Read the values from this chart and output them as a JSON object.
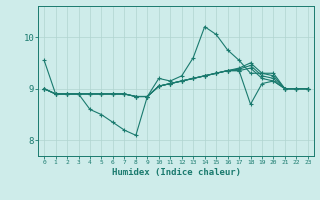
{
  "xlabel": "Humidex (Indice chaleur)",
  "ylabel": "",
  "background_color": "#ceecea",
  "grid_color": "#b0d4d0",
  "line_color": "#1a7a6e",
  "xlim": [
    -0.5,
    23.5
  ],
  "ylim": [
    7.7,
    10.6
  ],
  "yticks": [
    8,
    9,
    10
  ],
  "xticks": [
    0,
    1,
    2,
    3,
    4,
    5,
    6,
    7,
    8,
    9,
    10,
    11,
    12,
    13,
    14,
    15,
    16,
    17,
    18,
    19,
    20,
    21,
    22,
    23
  ],
  "series": [
    [
      9.55,
      8.9,
      8.9,
      8.9,
      8.6,
      8.5,
      8.35,
      8.2,
      8.1,
      8.85,
      9.2,
      9.15,
      9.25,
      9.6,
      10.2,
      10.05,
      9.75,
      9.55,
      9.3,
      9.3,
      9.3,
      9.0,
      9.0,
      9.0
    ],
    [
      9.0,
      8.9,
      8.9,
      8.9,
      8.9,
      8.9,
      8.9,
      8.9,
      8.85,
      8.85,
      9.05,
      9.1,
      9.15,
      9.2,
      9.25,
      9.3,
      9.35,
      9.4,
      9.5,
      9.3,
      9.25,
      9.0,
      9.0,
      9.0
    ],
    [
      9.0,
      8.9,
      8.9,
      8.9,
      8.9,
      8.9,
      8.9,
      8.9,
      8.85,
      8.85,
      9.05,
      9.1,
      9.15,
      9.2,
      9.25,
      9.3,
      9.35,
      9.38,
      9.45,
      9.25,
      9.2,
      9.0,
      9.0,
      9.0
    ],
    [
      9.0,
      8.9,
      8.9,
      8.9,
      8.9,
      8.9,
      8.9,
      8.9,
      8.85,
      8.85,
      9.05,
      9.1,
      9.15,
      9.2,
      9.25,
      9.3,
      9.35,
      9.35,
      9.4,
      9.2,
      9.15,
      9.0,
      9.0,
      9.0
    ],
    [
      9.0,
      8.9,
      8.9,
      8.9,
      8.9,
      8.9,
      8.9,
      8.9,
      8.85,
      8.85,
      9.05,
      9.1,
      9.15,
      9.2,
      9.25,
      9.3,
      9.35,
      9.35,
      8.7,
      9.1,
      9.15,
      9.0,
      9.0,
      9.0
    ]
  ]
}
